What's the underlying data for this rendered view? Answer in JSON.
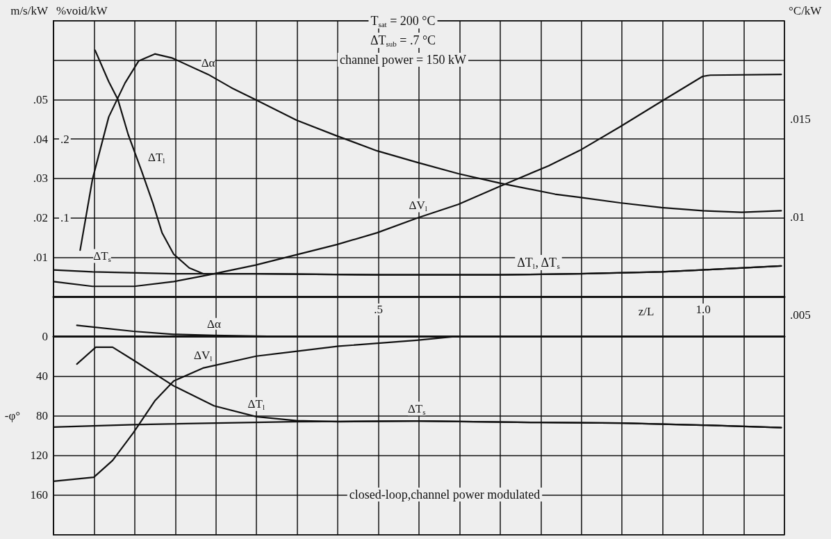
{
  "chart_data": [
    {
      "type": "line",
      "xlabel": "z/L",
      "ylabel": "m/s/kW",
      "y2label": "°C/kW",
      "y3label": "%void/kW",
      "xlim": [
        0,
        1.125
      ],
      "xticks": [
        {
          "value": 0,
          "label": null
        },
        {
          "value": 0.0625,
          "label": null
        },
        {
          "value": 0.125,
          "label": null
        },
        {
          "value": 0.1875,
          "label": null
        },
        {
          "value": 0.25,
          "label": null
        },
        {
          "value": 0.3125,
          "label": null
        },
        {
          "value": 0.375,
          "label": null
        },
        {
          "value": 0.4375,
          "label": null
        },
        {
          "value": 0.5,
          "label": ".5"
        },
        {
          "value": 0.5625,
          "label": null
        },
        {
          "value": 0.625,
          "label": null
        },
        {
          "value": 0.6875,
          "label": null
        },
        {
          "value": 0.75,
          "label": null
        },
        {
          "value": 0.8125,
          "label": null
        },
        {
          "value": 0.875,
          "label": null
        },
        {
          "value": 0.9375,
          "label": null
        },
        {
          "value": 1,
          "label": "1.0"
        },
        {
          "value": 1.0625,
          "label": null
        },
        {
          "value": 1.125,
          "label": null
        }
      ],
      "ylim": [
        0,
        0.07
      ],
      "yticks": [
        {
          "value": 0,
          "label": null
        },
        {
          "value": 0.01,
          "label": ".01"
        },
        {
          "value": 0.02,
          "label": ".02"
        },
        {
          "value": 0.03,
          "label": ".03"
        },
        {
          "value": 0.04,
          "label": ".04"
        },
        {
          "value": 0.05,
          "label": ".05"
        },
        {
          "value": 0.06,
          "label": null
        },
        {
          "value": 0.07,
          "label": null
        }
      ],
      "y2lim": [
        0.005,
        0.02
      ],
      "y2ticks": [
        {
          "value": 0.005,
          "label": ".005"
        },
        {
          "value": 0.01,
          "label": ".01"
        },
        {
          "value": 0.015,
          "label": ".015"
        }
      ],
      "y3lim": [
        0,
        0.35
      ],
      "y3ticks": [
        {
          "value": 0.1,
          "label": ".1"
        },
        {
          "value": 0.2,
          "label": ".2"
        }
      ],
      "grid": true,
      "legend": false,
      "marker": "none",
      "line_style": "solid",
      "annotations": [
        "T$_{sat}$ = 200 °C",
        "ΔT$_{sub}$ = .7 °C",
        "channel power = 150 kW",
        "ΔT$_{l}$, ΔT$_{s}$"
      ],
      "series": [
        {
          "name": "Δα",
          "color": "#111111",
          "axis": "y3",
          "x": [
            0.041,
            0.06,
            0.085,
            0.11,
            0.131,
            0.156,
            0.182,
            0.238,
            0.274,
            0.311,
            0.374,
            0.436,
            0.498,
            0.561,
            0.623,
            0.687,
            0.772,
            0.81,
            0.872,
            0.936,
            0.999,
            1.059,
            1.12
          ],
          "values": [
            0.059,
            0.149,
            0.228,
            0.271,
            0.299,
            0.308,
            0.303,
            0.282,
            0.265,
            0.25,
            0.224,
            0.204,
            0.185,
            0.17,
            0.156,
            0.144,
            0.13,
            0.126,
            0.119,
            0.113,
            0.109,
            0.107,
            0.109
          ]
        },
        {
          "name": "ΔT$_{l}$",
          "color": "#111111",
          "axis": "y2",
          "x": [
            0.064,
            0.085,
            0.099,
            0.115,
            0.135,
            0.153,
            0.167,
            0.185,
            0.209,
            0.231,
            0.312,
            0.498,
            0.687,
            0.81,
            0.936,
            0.999,
            1.12
          ],
          "values": [
            0.0185,
            0.0169,
            0.016,
            0.0142,
            0.0124,
            0.0107,
            0.0092,
            0.0081,
            0.0074,
            0.0071,
            0.0071,
            0.00705,
            0.00705,
            0.0071,
            0.0072,
            0.0073,
            0.0075
          ]
        },
        {
          "name": "ΔV$_{l}$",
          "color": "#111111",
          "x": [
            0,
            0.06,
            0.124,
            0.185,
            0.238,
            0.311,
            0.366,
            0.436,
            0.498,
            0.561,
            0.623,
            0.687,
            0.762,
            0.81,
            0.872,
            0.936,
            0.999,
            1.011,
            1.12
          ],
          "values": [
            0.0038,
            0.0026,
            0.0026,
            0.0038,
            0.0055,
            0.008,
            0.0103,
            0.0132,
            0.0162,
            0.02,
            0.0234,
            0.028,
            0.0332,
            0.0371,
            0.0431,
            0.0496,
            0.0559,
            0.0562,
            0.0564
          ]
        },
        {
          "name": "ΔT$_{s}$",
          "color": "#111111",
          "axis": "y2",
          "x": [
            0,
            0.06,
            0.185,
            0.311,
            0.498,
            0.687,
            0.81,
            0.936,
            0.999,
            1.12
          ],
          "values": [
            0.0073,
            0.0072,
            0.0071,
            0.0071,
            0.00705,
            0.00705,
            0.0071,
            0.0072,
            0.0073,
            0.0075
          ]
        }
      ]
    },
    {
      "type": "line",
      "ylabel": "-φ°",
      "tick_labels": "y",
      "xlim": [
        0,
        1.125
      ],
      "xticks": [
        {
          "value": 0,
          "label": null
        },
        {
          "value": 0.0625,
          "label": null
        },
        {
          "value": 0.125,
          "label": null
        },
        {
          "value": 0.1875,
          "label": null
        },
        {
          "value": 0.25,
          "label": null
        },
        {
          "value": 0.3125,
          "label": null
        },
        {
          "value": 0.375,
          "label": null
        },
        {
          "value": 0.4375,
          "label": null
        },
        {
          "value": 0.5,
          "label": null
        },
        {
          "value": 0.5625,
          "label": null
        },
        {
          "value": 0.625,
          "label": null
        },
        {
          "value": 0.6875,
          "label": null
        },
        {
          "value": 0.75,
          "label": null
        },
        {
          "value": 0.8125,
          "label": null
        },
        {
          "value": 0.875,
          "label": null
        },
        {
          "value": 0.9375,
          "label": null
        },
        {
          "value": 1,
          "label": null
        },
        {
          "value": 1.0625,
          "label": null
        },
        {
          "value": 1.125,
          "label": null
        }
      ],
      "ylim": [
        200,
        -40
      ],
      "yticks": [
        {
          "value": -40,
          "label": null
        },
        0,
        40,
        80,
        120,
        160,
        {
          "value": 200,
          "label": null
        }
      ],
      "grid": true,
      "legend": false,
      "marker": "none",
      "line_style": "solid",
      "annotations": [
        "closed-loop,channel power modulated"
      ],
      "series": [
        {
          "name": "Δα",
          "color": "#111111",
          "x": [
            0.036,
            0.123,
            0.185,
            0.247,
            0.329,
            0.6,
            1.12
          ],
          "values": [
            -11,
            -5,
            -2,
            -1,
            0,
            0,
            0
          ]
        },
        {
          "name": "ΔT$_{l}$",
          "color": "#111111",
          "x": [
            0.036,
            0.065,
            0.091,
            0.123,
            0.185,
            0.247,
            0.312,
            0.374,
            0.439,
            0.559,
            0.748,
            0.874,
            1.0,
            1.12
          ],
          "values": [
            28,
            11,
            11,
            24,
            50,
            70,
            81,
            85,
            86,
            85.4,
            86.8,
            87.5,
            89.5,
            92
          ]
        },
        {
          "name": "ΔV$_{l}$",
          "color": "#111111",
          "x": [
            0,
            0.062,
            0.091,
            0.123,
            0.156,
            0.185,
            0.23,
            0.312,
            0.439,
            0.559,
            0.622,
            0.748,
            1.12
          ],
          "values": [
            146,
            142,
            125,
            97,
            65,
            45,
            32,
            20,
            10,
            4,
            0,
            0,
            0
          ]
        },
        {
          "name": "ΔT$_{s}$",
          "color": "#111111",
          "x": [
            0,
            0.123,
            0.37,
            0.559,
            0.748,
            0.874,
            1.0,
            1.12
          ],
          "values": [
            91.5,
            89,
            86,
            85.4,
            86.8,
            87.5,
            89.5,
            92
          ]
        }
      ]
    }
  ]
}
